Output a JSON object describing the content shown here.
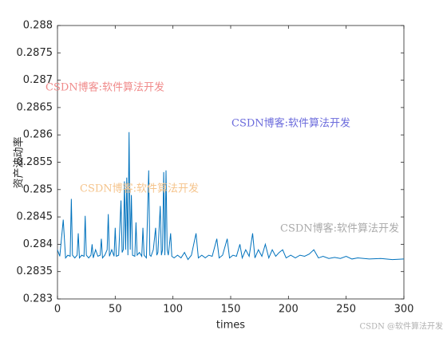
{
  "chart_data": {
    "type": "line",
    "x_label": "times",
    "y_label": "资产波动率",
    "xlim": [
      0,
      300
    ],
    "xticks": [
      0,
      50,
      100,
      150,
      200,
      250,
      300
    ],
    "ylim": [
      0.283,
      0.288
    ],
    "yticks": [
      0.283,
      0.2835,
      0.284,
      0.2845,
      0.285,
      0.2855,
      0.286,
      0.2865,
      0.287,
      0.2875,
      0.288
    ],
    "color": "#0072bd",
    "x": [
      0,
      2,
      3,
      5,
      7,
      9,
      11,
      12,
      13,
      15,
      17,
      18,
      19,
      21,
      23,
      24,
      25,
      27,
      29,
      30,
      31,
      33,
      35,
      37,
      38,
      39,
      41,
      43,
      44,
      45,
      47,
      49,
      50,
      51,
      53,
      55,
      56,
      57,
      58,
      59,
      60,
      61,
      62,
      63,
      64,
      65,
      67,
      68,
      69,
      71,
      73,
      74,
      75,
      77,
      79,
      80,
      81,
      83,
      85,
      86,
      87,
      89,
      90,
      91,
      92,
      93,
      94,
      95,
      96,
      98,
      99,
      101,
      104,
      107,
      110,
      113,
      116,
      120,
      122,
      125,
      128,
      131,
      134,
      138,
      140,
      143,
      147,
      149,
      152,
      155,
      158,
      160,
      163,
      166,
      169,
      171,
      174,
      177,
      180,
      183,
      186,
      189,
      192,
      195,
      198,
      202,
      206,
      210,
      214,
      218,
      222,
      226,
      230,
      235,
      240,
      245,
      250,
      255,
      260,
      270,
      280,
      290,
      300
    ],
    "values": [
      0.2839,
      0.28378,
      0.284,
      0.28445,
      0.28375,
      0.2838,
      0.28378,
      0.28483,
      0.2838,
      0.28375,
      0.2838,
      0.2842,
      0.28375,
      0.2838,
      0.28378,
      0.28452,
      0.2838,
      0.28375,
      0.2838,
      0.284,
      0.28375,
      0.2839,
      0.28378,
      0.2838,
      0.2841,
      0.28375,
      0.2838,
      0.2839,
      0.28455,
      0.28378,
      0.2839,
      0.28378,
      0.2843,
      0.28378,
      0.2838,
      0.2848,
      0.28385,
      0.2839,
      0.28515,
      0.2839,
      0.28522,
      0.2838,
      0.28605,
      0.2839,
      0.2849,
      0.2838,
      0.28378,
      0.2844,
      0.2838,
      0.28385,
      0.28378,
      0.2843,
      0.2838,
      0.28375,
      0.28535,
      0.2838,
      0.28378,
      0.2839,
      0.2843,
      0.2838,
      0.28385,
      0.2847,
      0.2838,
      0.2839,
      0.28532,
      0.2838,
      0.28535,
      0.2839,
      0.2838,
      0.2842,
      0.28378,
      0.28375,
      0.2838,
      0.28375,
      0.28385,
      0.28372,
      0.2838,
      0.2842,
      0.28375,
      0.2838,
      0.28375,
      0.2838,
      0.28378,
      0.2841,
      0.28375,
      0.2838,
      0.2841,
      0.28375,
      0.2838,
      0.28378,
      0.284,
      0.28375,
      0.2839,
      0.28378,
      0.2842,
      0.28375,
      0.2839,
      0.28378,
      0.284,
      0.28375,
      0.2839,
      0.28378,
      0.28385,
      0.2839,
      0.28375,
      0.2838,
      0.28375,
      0.2838,
      0.28378,
      0.28382,
      0.2839,
      0.28375,
      0.28378,
      0.28374,
      0.28376,
      0.28374,
      0.28378,
      0.28373,
      0.28375,
      0.28373,
      0.28374,
      0.28372,
      0.28373
    ],
    "annotations": [
      {
        "text": "CSDN博客:软件算法开发",
        "color": "#f08a8a"
      },
      {
        "text": "CSDN博客:软件算法开发",
        "color": "#6b6bdc"
      },
      {
        "text": "CSDN博客:软件算法开发",
        "color": "#f5c48c"
      },
      {
        "text": "CSDN博客:软件算法开发",
        "color": "#aaaaaa"
      },
      {
        "text": "CSDN @软件算法开发",
        "color": "#b0b0b0"
      }
    ]
  }
}
